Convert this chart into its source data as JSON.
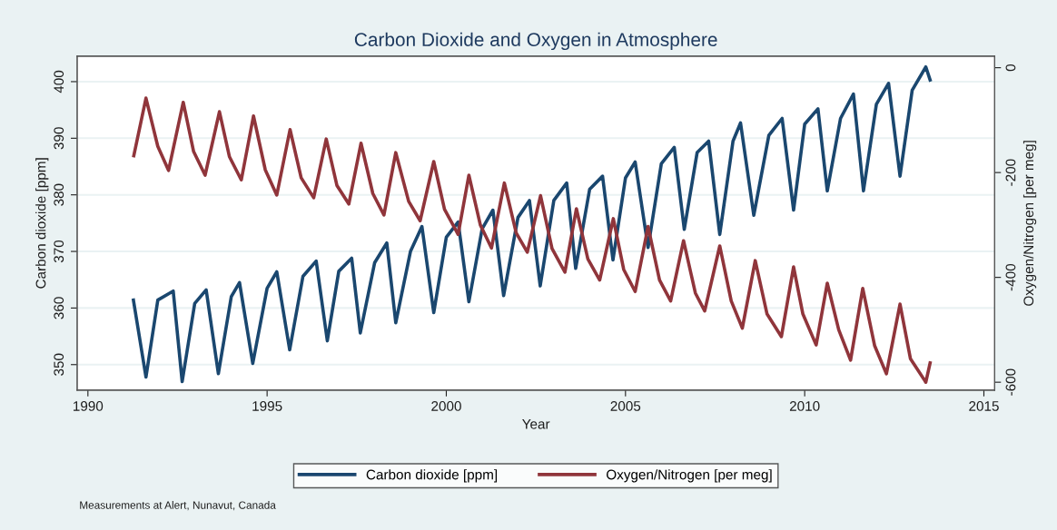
{
  "chart_data": {
    "type": "line",
    "title": "Carbon Dioxide and Oxygen in Atmosphere",
    "xlabel": "Year",
    "ylabel": "Carbon dioxide [ppm]",
    "y2label": "Oxygen/Nitrogen [per meg]",
    "xlim": [
      1989.7,
      2015.3
    ],
    "xticks": [
      1990,
      1995,
      2000,
      2005,
      2010,
      2015
    ],
    "ylim": [
      345.5,
      404.5
    ],
    "yticks": [
      350,
      360,
      370,
      380,
      390,
      400
    ],
    "y2lim": [
      -615,
      22
    ],
    "y2ticks": [
      -600,
      -400,
      -200,
      0
    ],
    "grid": "y",
    "legend": "bottom",
    "marker": "none",
    "line_style": "solid",
    "annotations": [
      "Measurements at Alert, Nunavut, Canada"
    ],
    "series": [
      {
        "name": "Carbon dioxide [ppm]",
        "color": "#1a476f",
        "axis": "y",
        "x": [
          1991.27,
          1991.62,
          1991.95,
          1992.38,
          1992.63,
          1992.98,
          1993.3,
          1993.64,
          1994.0,
          1994.23,
          1994.6,
          1995.0,
          1995.27,
          1995.63,
          1996.0,
          1996.37,
          1996.68,
          1997.0,
          1997.36,
          1997.6,
          1998.0,
          1998.34,
          1998.59,
          1999.0,
          1999.32,
          1999.65,
          2000.0,
          2000.33,
          2000.63,
          2001.0,
          2001.3,
          2001.6,
          2002.0,
          2002.32,
          2002.62,
          2003.0,
          2003.36,
          2003.61,
          2004.0,
          2004.36,
          2004.65,
          2005.0,
          2005.27,
          2005.63,
          2006.0,
          2006.36,
          2006.64,
          2007.0,
          2007.32,
          2007.63,
          2008.0,
          2008.21,
          2008.58,
          2009.0,
          2009.37,
          2009.69,
          2010.0,
          2010.37,
          2010.63,
          2011.0,
          2011.36,
          2011.64,
          2012.0,
          2012.34,
          2012.66,
          2013.0,
          2013.38,
          2013.5
        ],
        "values": [
          361.4,
          347.8,
          361.4,
          363.0,
          347.0,
          360.8,
          363.2,
          348.4,
          362.0,
          364.5,
          350.2,
          363.5,
          366.4,
          352.6,
          365.6,
          368.3,
          354.2,
          366.5,
          368.8,
          355.6,
          368.0,
          371.5,
          357.4,
          370.0,
          374.4,
          359.2,
          372.5,
          375.2,
          361.1,
          374.0,
          377.3,
          362.2,
          376.0,
          379.0,
          363.9,
          379.0,
          382.1,
          367.0,
          381.0,
          383.3,
          368.5,
          383.0,
          385.8,
          370.7,
          385.5,
          388.4,
          373.9,
          387.5,
          389.5,
          373.0,
          389.5,
          392.7,
          376.4,
          390.5,
          393.5,
          377.3,
          392.5,
          395.2,
          380.7,
          393.5,
          397.8,
          380.7,
          396.0,
          399.7,
          383.3,
          398.5,
          402.6,
          400.3
        ]
      },
      {
        "name": "Oxygen/Nitrogen [per meg]",
        "color": "#90353b",
        "axis": "y2",
        "x": [
          1991.28,
          1991.62,
          1991.95,
          1992.25,
          1992.66,
          1992.95,
          1993.27,
          1993.67,
          1993.95,
          1994.28,
          1994.62,
          1994.95,
          1995.27,
          1995.64,
          1995.95,
          1996.3,
          1996.65,
          1996.95,
          1997.28,
          1997.62,
          1997.95,
          1998.26,
          1998.59,
          1998.95,
          1999.27,
          1999.65,
          1999.95,
          2000.33,
          2000.63,
          2000.95,
          2001.26,
          2001.62,
          2001.95,
          2002.26,
          2002.63,
          2002.95,
          2003.31,
          2003.63,
          2003.95,
          2004.28,
          2004.66,
          2004.95,
          2005.27,
          2005.63,
          2005.95,
          2006.26,
          2006.62,
          2006.95,
          2007.21,
          2007.63,
          2007.95,
          2008.26,
          2008.62,
          2008.95,
          2009.35,
          2009.69,
          2009.95,
          2010.32,
          2010.63,
          2010.95,
          2011.28,
          2011.62,
          2011.95,
          2012.28,
          2012.66,
          2012.95,
          2013.38,
          2013.5
        ],
        "values": [
          -168,
          -58,
          -150,
          -196,
          -66,
          -160,
          -205,
          -84,
          -170,
          -214,
          -92,
          -195,
          -243,
          -118,
          -210,
          -248,
          -136,
          -225,
          -260,
          -144,
          -240,
          -281,
          -162,
          -255,
          -292,
          -179,
          -270,
          -318,
          -205,
          -300,
          -344,
          -220,
          -315,
          -352,
          -244,
          -345,
          -390,
          -269,
          -365,
          -405,
          -288,
          -385,
          -427,
          -303,
          -405,
          -445,
          -330,
          -430,
          -464,
          -340,
          -445,
          -497,
          -368,
          -470,
          -513,
          -380,
          -470,
          -529,
          -411,
          -500,
          -558,
          -421,
          -530,
          -584,
          -451,
          -555,
          -600,
          -563
        ]
      }
    ]
  }
}
